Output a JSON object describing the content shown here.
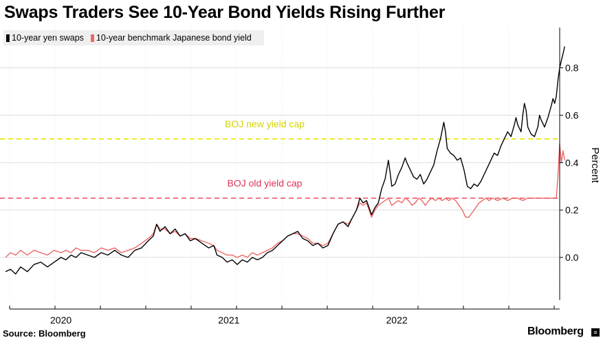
{
  "title": "Swaps Traders See 10-Year Bond Yields Rising Further",
  "source": "Source: Bloomberg",
  "brand": "Bloomberg",
  "brand_box_glyph": "≡",
  "chart_data": {
    "type": "line",
    "legend": [
      {
        "name": "10-year yen swaps",
        "color": "#000000"
      },
      {
        "name": "10-year benchmark Japanese bond yield",
        "color": "#ee6666"
      }
    ],
    "x_ticks": [
      "2020",
      "2021",
      "2022"
    ],
    "x_tick_dates": [
      2020.0,
      2021.0,
      2022.0
    ],
    "x_range": [
      2019.67,
      2022.97
    ],
    "y_label": "Percent",
    "y_ticks": [
      0.0,
      0.2,
      0.4,
      0.6,
      0.8
    ],
    "y_tick_labels": [
      "0.0",
      "0.2",
      "0.4",
      "0.6",
      "0.8"
    ],
    "y_range": [
      -0.18,
      0.97
    ],
    "grid": true,
    "reference_lines": [
      {
        "label": "BOJ new yield cap",
        "value": 0.5,
        "color": "#e6e600",
        "text_color": "#d4d400"
      },
      {
        "label": "BOJ old yield cap",
        "value": 0.25,
        "color": "#ee5566",
        "text_color": "#dd3355"
      }
    ],
    "series": [
      {
        "name": "10-year yen swaps",
        "color": "#000000",
        "points": [
          [
            2019.67,
            -0.06
          ],
          [
            2019.7,
            -0.05
          ],
          [
            2019.73,
            -0.07
          ],
          [
            2019.76,
            -0.04
          ],
          [
            2019.8,
            -0.06
          ],
          [
            2019.84,
            -0.03
          ],
          [
            2019.88,
            -0.02
          ],
          [
            2019.92,
            -0.04
          ],
          [
            2019.96,
            -0.02
          ],
          [
            2020.0,
            0.0
          ],
          [
            2020.03,
            -0.01
          ],
          [
            2020.06,
            0.01
          ],
          [
            2020.09,
            0.0
          ],
          [
            2020.12,
            0.02
          ],
          [
            2020.16,
            0.01
          ],
          [
            2020.2,
            0.0
          ],
          [
            2020.24,
            0.02
          ],
          [
            2020.28,
            0.01
          ],
          [
            2020.32,
            0.03
          ],
          [
            2020.36,
            0.01
          ],
          [
            2020.4,
            0.0
          ],
          [
            2020.44,
            0.03
          ],
          [
            2020.48,
            0.04
          ],
          [
            2020.52,
            0.07
          ],
          [
            2020.55,
            0.09
          ],
          [
            2020.57,
            0.14
          ],
          [
            2020.59,
            0.11
          ],
          [
            2020.62,
            0.13
          ],
          [
            2020.65,
            0.1
          ],
          [
            2020.68,
            0.12
          ],
          [
            2020.71,
            0.09
          ],
          [
            2020.74,
            0.1
          ],
          [
            2020.77,
            0.07
          ],
          [
            2020.8,
            0.08
          ],
          [
            2020.84,
            0.06
          ],
          [
            2020.88,
            0.04
          ],
          [
            2020.91,
            0.05
          ],
          [
            2020.93,
            0.01
          ],
          [
            2020.96,
            0.0
          ],
          [
            2020.99,
            -0.02
          ],
          [
            2021.02,
            -0.01
          ],
          [
            2021.05,
            -0.03
          ],
          [
            2021.08,
            -0.01
          ],
          [
            2021.11,
            -0.02
          ],
          [
            2021.14,
            0.0
          ],
          [
            2021.17,
            -0.01
          ],
          [
            2021.2,
            0.0
          ],
          [
            2021.23,
            0.02
          ],
          [
            2021.26,
            0.03
          ],
          [
            2021.29,
            0.05
          ],
          [
            2021.32,
            0.07
          ],
          [
            2021.35,
            0.09
          ],
          [
            2021.38,
            0.1
          ],
          [
            2021.41,
            0.11
          ],
          [
            2021.44,
            0.08
          ],
          [
            2021.47,
            0.07
          ],
          [
            2021.5,
            0.05
          ],
          [
            2021.53,
            0.06
          ],
          [
            2021.56,
            0.04
          ],
          [
            2021.59,
            0.05
          ],
          [
            2021.62,
            0.1
          ],
          [
            2021.65,
            0.14
          ],
          [
            2021.68,
            0.15
          ],
          [
            2021.71,
            0.13
          ],
          [
            2021.73,
            0.16
          ],
          [
            2021.76,
            0.2
          ],
          [
            2021.78,
            0.25
          ],
          [
            2021.8,
            0.23
          ],
          [
            2021.82,
            0.24
          ],
          [
            2021.84,
            0.2
          ],
          [
            2021.85,
            0.18
          ],
          [
            2021.87,
            0.21
          ],
          [
            2021.89,
            0.23
          ],
          [
            2021.91,
            0.29
          ],
          [
            2021.93,
            0.33
          ],
          [
            2021.95,
            0.41
          ],
          [
            2021.96,
            0.36
          ],
          [
            2021.97,
            0.3
          ],
          [
            2021.99,
            0.31
          ],
          [
            2022.01,
            0.35
          ],
          [
            2022.03,
            0.38
          ],
          [
            2022.05,
            0.42
          ],
          [
            2022.06,
            0.4
          ],
          [
            2022.08,
            0.37
          ],
          [
            2022.1,
            0.34
          ],
          [
            2022.12,
            0.33
          ],
          [
            2022.14,
            0.35
          ],
          [
            2022.16,
            0.31
          ],
          [
            2022.18,
            0.33
          ],
          [
            2022.2,
            0.36
          ],
          [
            2022.22,
            0.39
          ],
          [
            2022.24,
            0.45
          ],
          [
            2022.26,
            0.5
          ],
          [
            2022.28,
            0.57
          ],
          [
            2022.29,
            0.53
          ],
          [
            2022.3,
            0.46
          ],
          [
            2022.32,
            0.44
          ],
          [
            2022.34,
            0.43
          ],
          [
            2022.36,
            0.41
          ],
          [
            2022.38,
            0.42
          ],
          [
            2022.4,
            0.37
          ],
          [
            2022.42,
            0.3
          ],
          [
            2022.44,
            0.29
          ],
          [
            2022.46,
            0.31
          ],
          [
            2022.48,
            0.3
          ],
          [
            2022.5,
            0.32
          ],
          [
            2022.52,
            0.35
          ],
          [
            2022.54,
            0.38
          ],
          [
            2022.56,
            0.41
          ],
          [
            2022.58,
            0.44
          ],
          [
            2022.6,
            0.43
          ],
          [
            2022.62,
            0.47
          ],
          [
            2022.64,
            0.5
          ],
          [
            2022.66,
            0.53
          ],
          [
            2022.68,
            0.51
          ],
          [
            2022.7,
            0.56
          ],
          [
            2022.71,
            0.59
          ],
          [
            2022.72,
            0.56
          ],
          [
            2022.74,
            0.53
          ],
          [
            2022.75,
            0.6
          ],
          [
            2022.76,
            0.65
          ],
          [
            2022.77,
            0.62
          ],
          [
            2022.78,
            0.55
          ],
          [
            2022.8,
            0.52
          ],
          [
            2022.82,
            0.51
          ],
          [
            2022.84,
            0.55
          ],
          [
            2022.85,
            0.6
          ],
          [
            2022.86,
            0.58
          ],
          [
            2022.88,
            0.55
          ],
          [
            2022.9,
            0.59
          ],
          [
            2022.92,
            0.64
          ],
          [
            2022.93,
            0.67
          ],
          [
            2022.94,
            0.65
          ],
          [
            2022.95,
            0.68
          ],
          [
            2022.96,
            0.75
          ],
          [
            2022.97,
            0.8
          ],
          [
            2022.98,
            0.83
          ],
          [
            2022.99,
            0.86
          ],
          [
            2023.0,
            0.89
          ]
        ]
      },
      {
        "name": "10-year benchmark Japanese bond yield",
        "color": "#ee6666",
        "points": [
          [
            2019.67,
            0.0
          ],
          [
            2019.7,
            0.02
          ],
          [
            2019.73,
            0.01
          ],
          [
            2019.76,
            0.03
          ],
          [
            2019.8,
            0.01
          ],
          [
            2019.84,
            0.03
          ],
          [
            2019.88,
            0.02
          ],
          [
            2019.92,
            0.01
          ],
          [
            2019.96,
            0.03
          ],
          [
            2020.0,
            0.02
          ],
          [
            2020.03,
            0.03
          ],
          [
            2020.06,
            0.02
          ],
          [
            2020.09,
            0.04
          ],
          [
            2020.12,
            0.03
          ],
          [
            2020.16,
            0.03
          ],
          [
            2020.2,
            0.02
          ],
          [
            2020.24,
            0.04
          ],
          [
            2020.28,
            0.03
          ],
          [
            2020.32,
            0.04
          ],
          [
            2020.36,
            0.02
          ],
          [
            2020.4,
            0.03
          ],
          [
            2020.44,
            0.04
          ],
          [
            2020.48,
            0.06
          ],
          [
            2020.52,
            0.08
          ],
          [
            2020.55,
            0.1
          ],
          [
            2020.57,
            0.14
          ],
          [
            2020.59,
            0.12
          ],
          [
            2020.62,
            0.12
          ],
          [
            2020.65,
            0.1
          ],
          [
            2020.68,
            0.11
          ],
          [
            2020.71,
            0.09
          ],
          [
            2020.74,
            0.1
          ],
          [
            2020.77,
            0.08
          ],
          [
            2020.8,
            0.08
          ],
          [
            2020.84,
            0.07
          ],
          [
            2020.88,
            0.06
          ],
          [
            2020.91,
            0.05
          ],
          [
            2020.93,
            0.03
          ],
          [
            2020.96,
            0.02
          ],
          [
            2020.99,
            0.01
          ],
          [
            2021.02,
            0.01
          ],
          [
            2021.05,
            0.0
          ],
          [
            2021.08,
            0.01
          ],
          [
            2021.11,
            0.0
          ],
          [
            2021.14,
            0.02
          ],
          [
            2021.17,
            0.01
          ],
          [
            2021.2,
            0.02
          ],
          [
            2021.23,
            0.03
          ],
          [
            2021.26,
            0.04
          ],
          [
            2021.29,
            0.06
          ],
          [
            2021.32,
            0.07
          ],
          [
            2021.35,
            0.09
          ],
          [
            2021.38,
            0.1
          ],
          [
            2021.41,
            0.1
          ],
          [
            2021.44,
            0.09
          ],
          [
            2021.47,
            0.08
          ],
          [
            2021.5,
            0.06
          ],
          [
            2021.53,
            0.06
          ],
          [
            2021.56,
            0.05
          ],
          [
            2021.59,
            0.06
          ],
          [
            2021.62,
            0.1
          ],
          [
            2021.65,
            0.14
          ],
          [
            2021.68,
            0.15
          ],
          [
            2021.71,
            0.14
          ],
          [
            2021.73,
            0.16
          ],
          [
            2021.76,
            0.2
          ],
          [
            2021.78,
            0.23
          ],
          [
            2021.8,
            0.22
          ],
          [
            2021.82,
            0.23
          ],
          [
            2021.84,
            0.19
          ],
          [
            2021.85,
            0.17
          ],
          [
            2021.87,
            0.2
          ],
          [
            2021.89,
            0.22
          ],
          [
            2021.91,
            0.23
          ],
          [
            2021.93,
            0.24
          ],
          [
            2021.95,
            0.25
          ],
          [
            2021.97,
            0.22
          ],
          [
            2021.99,
            0.23
          ],
          [
            2022.01,
            0.24
          ],
          [
            2022.03,
            0.23
          ],
          [
            2022.05,
            0.25
          ],
          [
            2022.07,
            0.24
          ],
          [
            2022.09,
            0.22
          ],
          [
            2022.11,
            0.23
          ],
          [
            2022.13,
            0.25
          ],
          [
            2022.15,
            0.24
          ],
          [
            2022.17,
            0.22
          ],
          [
            2022.19,
            0.24
          ],
          [
            2022.21,
            0.25
          ],
          [
            2022.23,
            0.24
          ],
          [
            2022.25,
            0.25
          ],
          [
            2022.27,
            0.24
          ],
          [
            2022.29,
            0.25
          ],
          [
            2022.31,
            0.24
          ],
          [
            2022.33,
            0.25
          ],
          [
            2022.35,
            0.24
          ],
          [
            2022.37,
            0.22
          ],
          [
            2022.39,
            0.2
          ],
          [
            2022.41,
            0.17
          ],
          [
            2022.43,
            0.17
          ],
          [
            2022.45,
            0.19
          ],
          [
            2022.47,
            0.21
          ],
          [
            2022.49,
            0.23
          ],
          [
            2022.51,
            0.24
          ],
          [
            2022.53,
            0.25
          ],
          [
            2022.55,
            0.24
          ],
          [
            2022.57,
            0.25
          ],
          [
            2022.6,
            0.24
          ],
          [
            2022.63,
            0.25
          ],
          [
            2022.66,
            0.24
          ],
          [
            2022.69,
            0.25
          ],
          [
            2022.72,
            0.25
          ],
          [
            2022.75,
            0.24
          ],
          [
            2022.78,
            0.25
          ],
          [
            2022.81,
            0.25
          ],
          [
            2022.84,
            0.25
          ],
          [
            2022.87,
            0.25
          ],
          [
            2022.9,
            0.25
          ],
          [
            2022.93,
            0.25
          ],
          [
            2022.95,
            0.25
          ],
          [
            2022.96,
            0.35
          ],
          [
            2022.97,
            0.48
          ],
          [
            2022.98,
            0.4
          ],
          [
            2022.99,
            0.45
          ],
          [
            2023.0,
            0.41
          ]
        ]
      }
    ]
  }
}
